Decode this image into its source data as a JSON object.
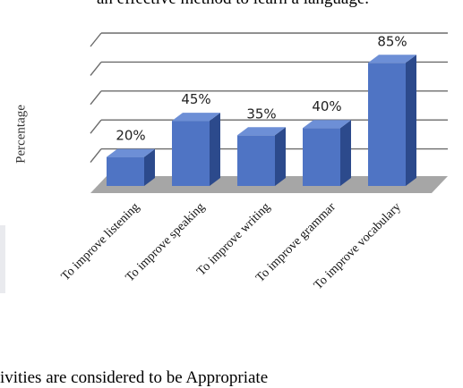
{
  "page": {
    "text_above": "an effective method to learn a language.",
    "text_below": "ivities are considered to be Appropriate"
  },
  "chart_data": {
    "type": "bar",
    "style": "3d-column",
    "categories": [
      "To improve listening",
      "To improve speaking",
      "To improve writing",
      "To improve grammar",
      "To improve vocabulary"
    ],
    "values": [
      20,
      45,
      35,
      40,
      85
    ],
    "data_labels": [
      "20%",
      "45%",
      "35%",
      "40%",
      "85%"
    ],
    "title": "",
    "xlabel": "",
    "ylabel": "Percentage",
    "ylim": [
      0,
      100
    ],
    "grid": true,
    "legend": "none",
    "colors": {
      "bar_front": "#4f74c4",
      "bar_side": "#2c4a8c",
      "bar_top": "#6d8fd6",
      "floor": "#a6a6a6",
      "gridline": "#6b6b6b"
    }
  }
}
